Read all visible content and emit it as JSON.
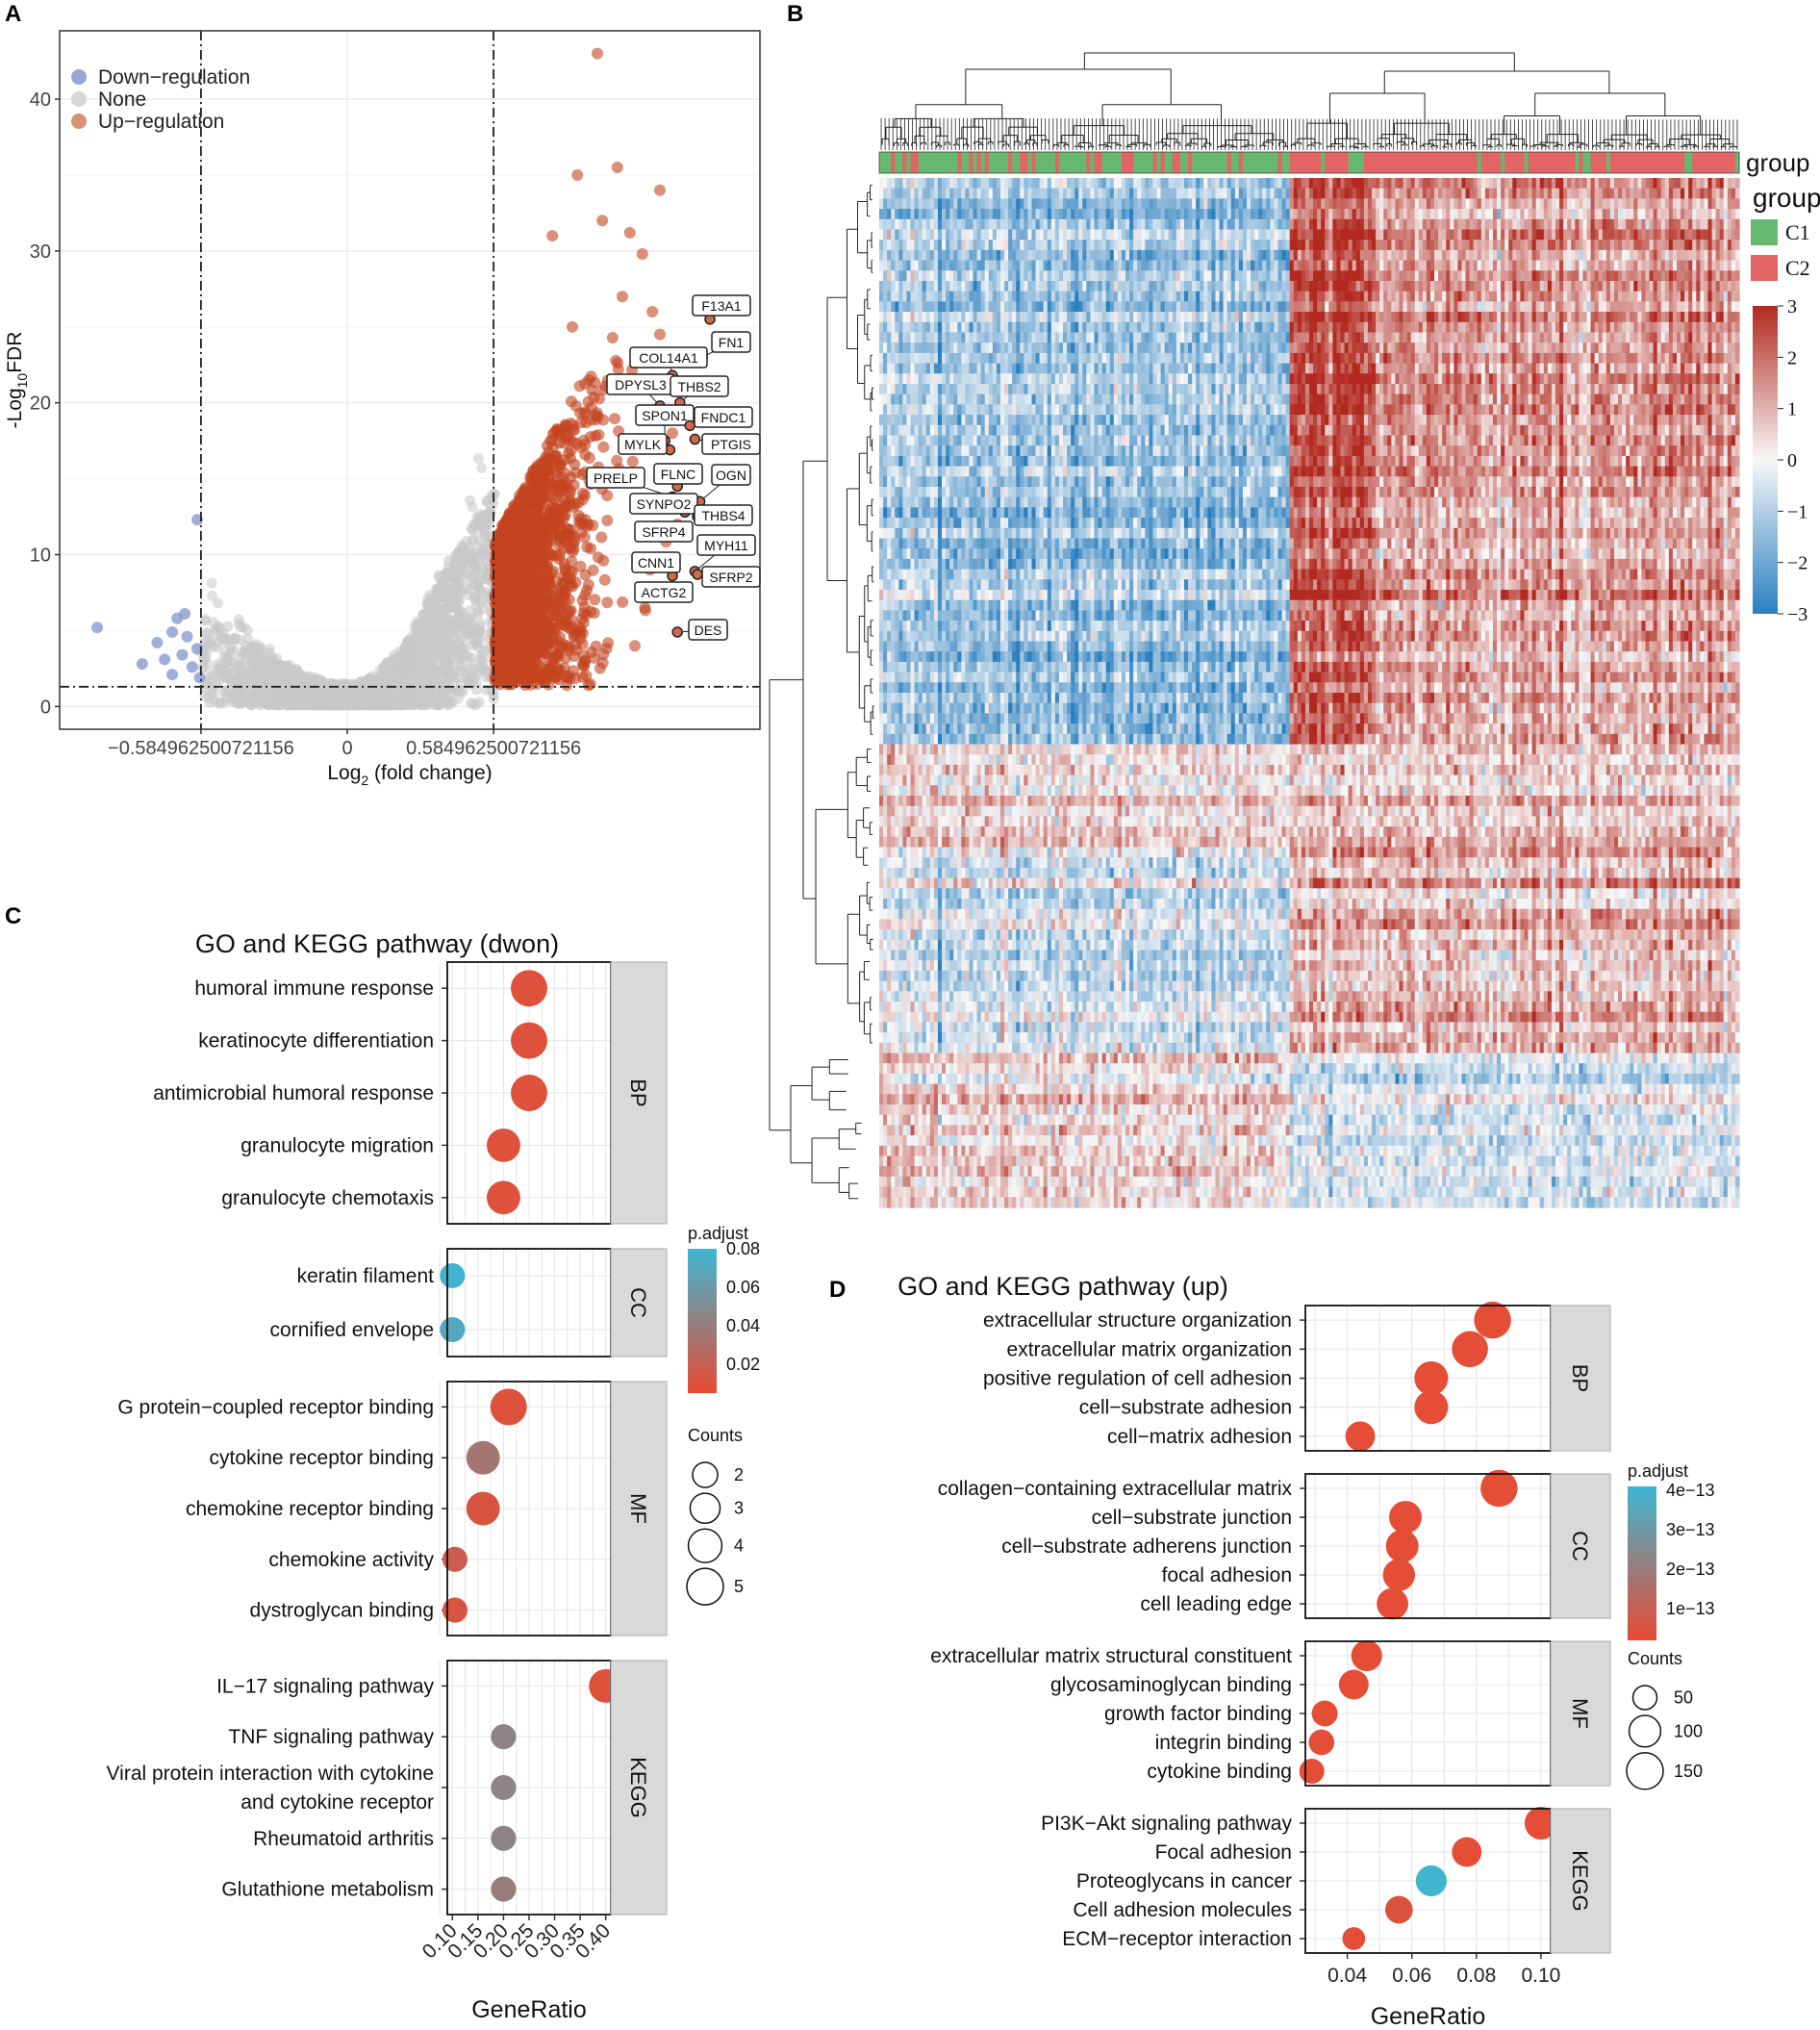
{
  "panel_labels": [
    "A",
    "B",
    "C",
    "D"
  ],
  "chart_data": [
    {
      "id": "A",
      "type": "scatter",
      "subtype": "volcano",
      "xlabel": "Log2 (fold change)",
      "xlabel_main": "Log",
      "xlabel_sub": "2",
      "xlabel_rest": " (fold change)",
      "ylabel_pre": "-Log",
      "ylabel_sub": "10",
      "ylabel_rest": "FDR",
      "xlim": [
        -1.15,
        1.65
      ],
      "ylim": [
        -1.5,
        44.5
      ],
      "x_ticks": [
        -0.584962500721156,
        0,
        0.584962500721156
      ],
      "x_tick_labels": [
        "−0.584962500721156",
        "0",
        "0.584962500721156"
      ],
      "y_ticks": [
        0,
        10,
        20,
        30,
        40
      ],
      "y_tick_labels": [
        "0",
        "10",
        "20",
        "30",
        "40"
      ],
      "vlines": [
        -0.584962500721156,
        0.584962500721156
      ],
      "hline": 1.3,
      "legend": [
        {
          "label": "Down−regulation",
          "color": "#9aa6d6"
        },
        {
          "label": "None",
          "color": "#d8d8d8"
        },
        {
          "label": "Up−regulation",
          "color": "#d99270"
        }
      ],
      "point_colors": {
        "down": "#8293cc",
        "none": "#c9c9c9",
        "up": "#c4451f"
      },
      "down_points": [
        [
          -1.0,
          5.2
        ],
        [
          -0.82,
          2.8
        ],
        [
          -0.76,
          4.2
        ],
        [
          -0.73,
          3.1
        ],
        [
          -0.7,
          2.1
        ],
        [
          -0.68,
          5.8
        ],
        [
          -0.66,
          3.4
        ],
        [
          -0.64,
          4.6
        ],
        [
          -0.62,
          2.6
        ],
        [
          -0.6,
          12.3
        ],
        [
          -0.6,
          3.8
        ],
        [
          -0.59,
          1.9
        ],
        [
          -0.7,
          4.9
        ],
        [
          -0.65,
          6.1
        ]
      ],
      "up_outliers": [
        [
          0.82,
          31.0
        ],
        [
          0.92,
          35.0
        ],
        [
          1.02,
          32.0
        ],
        [
          1.08,
          35.5
        ],
        [
          1.13,
          31.2
        ],
        [
          1.18,
          29.8
        ],
        [
          1.22,
          26.0
        ],
        [
          1.25,
          24.5
        ],
        [
          1.1,
          27.0
        ],
        [
          1.15,
          21.0
        ],
        [
          1.3,
          18.0
        ],
        [
          1.28,
          15.5
        ],
        [
          1.32,
          12.0
        ],
        [
          1.21,
          9.0
        ],
        [
          1.19,
          6.5
        ],
        [
          1.15,
          4.0
        ],
        [
          0.95,
          3.0
        ],
        [
          1.0,
          43.0
        ],
        [
          1.25,
          34.0
        ],
        [
          0.9,
          25.0
        ]
      ],
      "labeled_genes": [
        {
          "gene": "F13A1",
          "x": 1.45,
          "y": 25.5
        },
        {
          "gene": "FN1",
          "x": 1.42,
          "y": 23.0
        },
        {
          "gene": "COL14A1",
          "x": 1.3,
          "y": 21.8
        },
        {
          "gene": "DPYSL3",
          "x": 1.25,
          "y": 19.8
        },
        {
          "gene": "THBS2",
          "x": 1.33,
          "y": 20.0
        },
        {
          "gene": "SPON1",
          "x": 1.27,
          "y": 17.5
        },
        {
          "gene": "FNDC1",
          "x": 1.37,
          "y": 18.5
        },
        {
          "gene": "MYLK",
          "x": 1.29,
          "y": 16.9
        },
        {
          "gene": "PTGIS",
          "x": 1.39,
          "y": 17.6
        },
        {
          "gene": "PRELP",
          "x": 1.3,
          "y": 13.8
        },
        {
          "gene": "FLNC",
          "x": 1.32,
          "y": 14.5
        },
        {
          "gene": "OGN",
          "x": 1.41,
          "y": 13.5
        },
        {
          "gene": "SYNPO2",
          "x": 1.35,
          "y": 12.8
        },
        {
          "gene": "THBS4",
          "x": 1.4,
          "y": 12.5
        },
        {
          "gene": "SFRP4",
          "x": 1.31,
          "y": 11.5
        },
        {
          "gene": "MYH11",
          "x": 1.39,
          "y": 8.9
        },
        {
          "gene": "CNN1",
          "x": 1.3,
          "y": 8.6
        },
        {
          "gene": "SFRP2",
          "x": 1.4,
          "y": 8.7
        },
        {
          "gene": "ACTG2",
          "x": 1.3,
          "y": 7.5
        },
        {
          "gene": "DES",
          "x": 1.32,
          "y": 4.9
        }
      ]
    },
    {
      "id": "B",
      "type": "heatmap",
      "annotation_title": "group",
      "legend_groups": [
        {
          "label": "C1",
          "color": "#66b86f"
        },
        {
          "label": "C2",
          "color": "#e36464"
        }
      ],
      "color_scale_ticks": [
        3,
        2,
        1,
        0,
        -1,
        -2,
        -3
      ],
      "color_scale_tick_labels": [
        "3",
        "2",
        "1",
        "0",
        "−1",
        "−2",
        "−3"
      ],
      "color_low": "#2a7fbf",
      "color_mid": "#f7f7f7",
      "color_high": "#b2291f",
      "n_rows": 100,
      "n_cols": 220,
      "c1_columns": 105,
      "row_blocks": [
        {
          "rows": 55,
          "c1_mean": -1.2,
          "c2_mean": 1.3
        },
        {
          "rows": 10,
          "c1_mean": 0.6,
          "c2_mean": 0.8
        },
        {
          "rows": 20,
          "c1_mean": -0.5,
          "c2_mean": 0.9
        },
        {
          "rows": 15,
          "c1_mean": 0.5,
          "c2_mean": -0.5
        }
      ]
    },
    {
      "id": "C",
      "type": "scatter",
      "subtype": "dotplot",
      "title": "GO and KEGG pathway (dwon)",
      "xlabel": "GeneRatio",
      "xlim": [
        0.09,
        0.41
      ],
      "x_ticks": [
        0.1,
        0.15,
        0.2,
        0.25,
        0.3,
        0.35,
        0.4
      ],
      "x_tick_labels": [
        "0.10",
        "0.15",
        "0.20",
        "0.25",
        "0.30",
        "0.35",
        "0.40"
      ],
      "color_legend_title": "p.adjust",
      "color_range": [
        0.005,
        0.08
      ],
      "color_ticks": [
        0.08,
        0.06,
        0.04,
        0.02
      ],
      "color_tick_labels": [
        "0.08",
        "0.06",
        "0.04",
        "0.02"
      ],
      "size_legend_title": "Counts",
      "size_legend_values": [
        2,
        3,
        4,
        5
      ],
      "size_legend_labels": [
        "2",
        "3",
        "4",
        "5"
      ],
      "facets": [
        {
          "name": "BP",
          "terms": [
            {
              "label": "humoral immune response",
              "x": 0.25,
              "count": 5,
              "padj": 0.01
            },
            {
              "label": "keratinocyte differentiation",
              "x": 0.25,
              "count": 5,
              "padj": 0.01
            },
            {
              "label": "antimicrobial humoral response",
              "x": 0.25,
              "count": 5,
              "padj": 0.01
            },
            {
              "label": "granulocyte migration",
              "x": 0.2,
              "count": 4,
              "padj": 0.01
            },
            {
              "label": "granulocyte chemotaxis",
              "x": 0.2,
              "count": 4,
              "padj": 0.01
            }
          ]
        },
        {
          "name": "CC",
          "terms": [
            {
              "label": "keratin filament",
              "x": 0.1,
              "count": 2,
              "padj": 0.078
            },
            {
              "label": "cornified envelope",
              "x": 0.1,
              "count": 2,
              "padj": 0.07
            }
          ]
        },
        {
          "name": "MF",
          "terms": [
            {
              "label": "G protein−coupled receptor binding",
              "x": 0.21,
              "count": 5,
              "padj": 0.01
            },
            {
              "label": "cytokine receptor binding",
              "x": 0.16,
              "count": 4,
              "padj": 0.035
            },
            {
              "label": "chemokine receptor binding",
              "x": 0.16,
              "count": 4,
              "padj": 0.012
            },
            {
              "label": "chemokine activity",
              "x": 0.105,
              "count": 2,
              "padj": 0.018
            },
            {
              "label": "dystroglycan binding",
              "x": 0.105,
              "count": 2,
              "padj": 0.012
            }
          ]
        },
        {
          "name": "KEGG",
          "terms": [
            {
              "label": "IL−17 signaling pathway",
              "x": 0.4,
              "count": 4,
              "padj": 0.01
            },
            {
              "label": "TNF signaling pathway",
              "x": 0.2,
              "count": 2,
              "padj": 0.045
            },
            {
              "label": "Viral protein interaction with cytokine and cytokine receptor",
              "label_lines": [
                "Viral protein interaction with cytokine",
                "and cytokine receptor"
              ],
              "x": 0.2,
              "count": 2,
              "padj": 0.045
            },
            {
              "label": "Rheumatoid arthritis",
              "x": 0.2,
              "count": 2,
              "padj": 0.045
            },
            {
              "label": "Glutathione metabolism",
              "x": 0.2,
              "count": 2,
              "padj": 0.04
            }
          ]
        }
      ]
    },
    {
      "id": "D",
      "type": "scatter",
      "subtype": "dotplot",
      "title": "GO and KEGG pathway (up)",
      "xlabel": "GeneRatio",
      "xlim": [
        0.027,
        0.103
      ],
      "x_ticks": [
        0.04,
        0.06,
        0.08,
        0.1
      ],
      "x_tick_labels": [
        "0.04",
        "0.06",
        "0.08",
        "0.10"
      ],
      "color_legend_title": "p.adjust",
      "color_range": [
        2e-14,
        4.1e-13
      ],
      "color_ticks": [
        4e-13,
        3e-13,
        2e-13,
        1e-13
      ],
      "color_tick_labels": [
        "4e−13",
        "3e−13",
        "2e−13",
        "1e−13"
      ],
      "size_legend_title": "Counts",
      "size_legend_values": [
        50,
        100,
        150
      ],
      "size_legend_labels": [
        "50",
        "100",
        "150"
      ],
      "facets": [
        {
          "name": "BP",
          "terms": [
            {
              "label": "extracellular structure organization",
              "x": 0.085,
              "count": 155,
              "padj": 3e-14
            },
            {
              "label": "extracellular matrix organization",
              "x": 0.078,
              "count": 145,
              "padj": 3e-14
            },
            {
              "label": "positive regulation of cell adhesion",
              "x": 0.066,
              "count": 120,
              "padj": 3e-14
            },
            {
              "label": "cell−substrate adhesion",
              "x": 0.066,
              "count": 120,
              "padj": 3e-14
            },
            {
              "label": "cell−matrix adhesion",
              "x": 0.044,
              "count": 85,
              "padj": 3e-14
            }
          ]
        },
        {
          "name": "CC",
          "terms": [
            {
              "label": "collagen−containing extracellular matrix",
              "x": 0.087,
              "count": 155,
              "padj": 3e-14
            },
            {
              "label": "cell−substrate junction",
              "x": 0.058,
              "count": 110,
              "padj": 3e-14
            },
            {
              "label": "cell−substrate adherens junction",
              "x": 0.057,
              "count": 110,
              "padj": 3e-14
            },
            {
              "label": "focal adhesion",
              "x": 0.056,
              "count": 105,
              "padj": 3e-14
            },
            {
              "label": "cell leading edge",
              "x": 0.054,
              "count": 100,
              "padj": 3e-14
            }
          ]
        },
        {
          "name": "MF",
          "terms": [
            {
              "label": "extracellular matrix structural constituent",
              "x": 0.046,
              "count": 95,
              "padj": 3e-14
            },
            {
              "label": "glycosaminoglycan binding",
              "x": 0.042,
              "count": 85,
              "padj": 3e-14
            },
            {
              "label": "growth factor binding",
              "x": 0.033,
              "count": 60,
              "padj": 3e-14
            },
            {
              "label": "integrin binding",
              "x": 0.032,
              "count": 58,
              "padj": 3e-14
            },
            {
              "label": "cytokine binding",
              "x": 0.029,
              "count": 55,
              "padj": 3e-14
            }
          ]
        },
        {
          "name": "KEGG",
          "terms": [
            {
              "label": "PI3K−Akt signaling pathway",
              "x": 0.1,
              "count": 110,
              "padj": 3e-14
            },
            {
              "label": "Focal adhesion",
              "x": 0.077,
              "count": 85,
              "padj": 3e-14
            },
            {
              "label": "Proteoglycans in cancer",
              "x": 0.066,
              "count": 95,
              "padj": 4e-13
            },
            {
              "label": "Cell adhesion molecules",
              "x": 0.056,
              "count": 70,
              "padj": 5e-14
            },
            {
              "label": "ECM−receptor interaction",
              "x": 0.042,
              "count": 45,
              "padj": 3e-14
            }
          ]
        }
      ]
    }
  ]
}
